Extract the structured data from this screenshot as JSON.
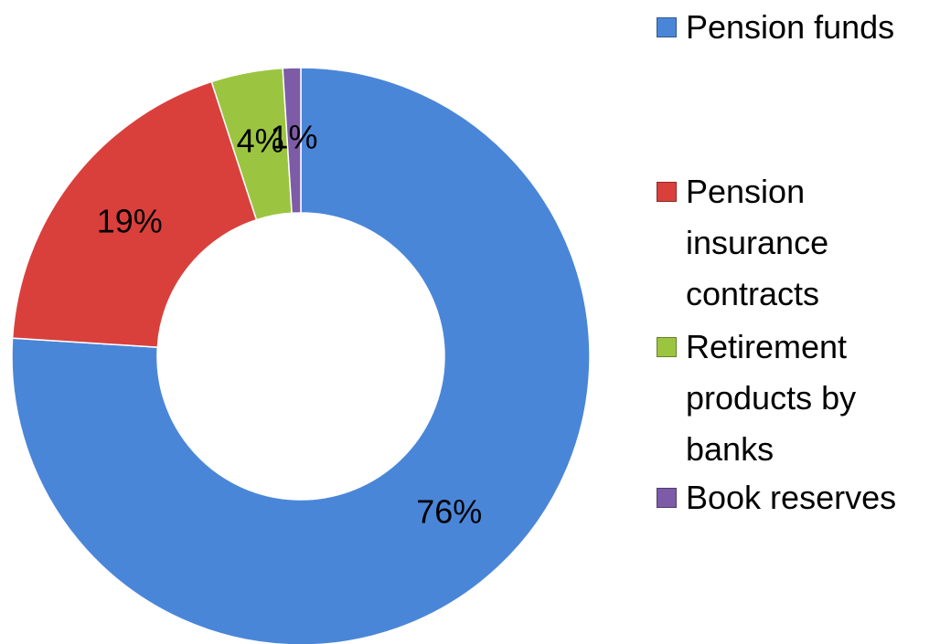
{
  "chart_data": {
    "type": "donut",
    "categories": [
      "Pension funds",
      "Pension insurance contracts",
      "Retirement products by banks",
      "Book reserves"
    ],
    "values": [
      76,
      19,
      4,
      1
    ],
    "value_labels": [
      "76%",
      "19%",
      "4%",
      "1%"
    ],
    "colors": [
      "#4a86d8",
      "#d9403c",
      "#9bc540",
      "#7d5ba6"
    ],
    "legend": "right"
  }
}
